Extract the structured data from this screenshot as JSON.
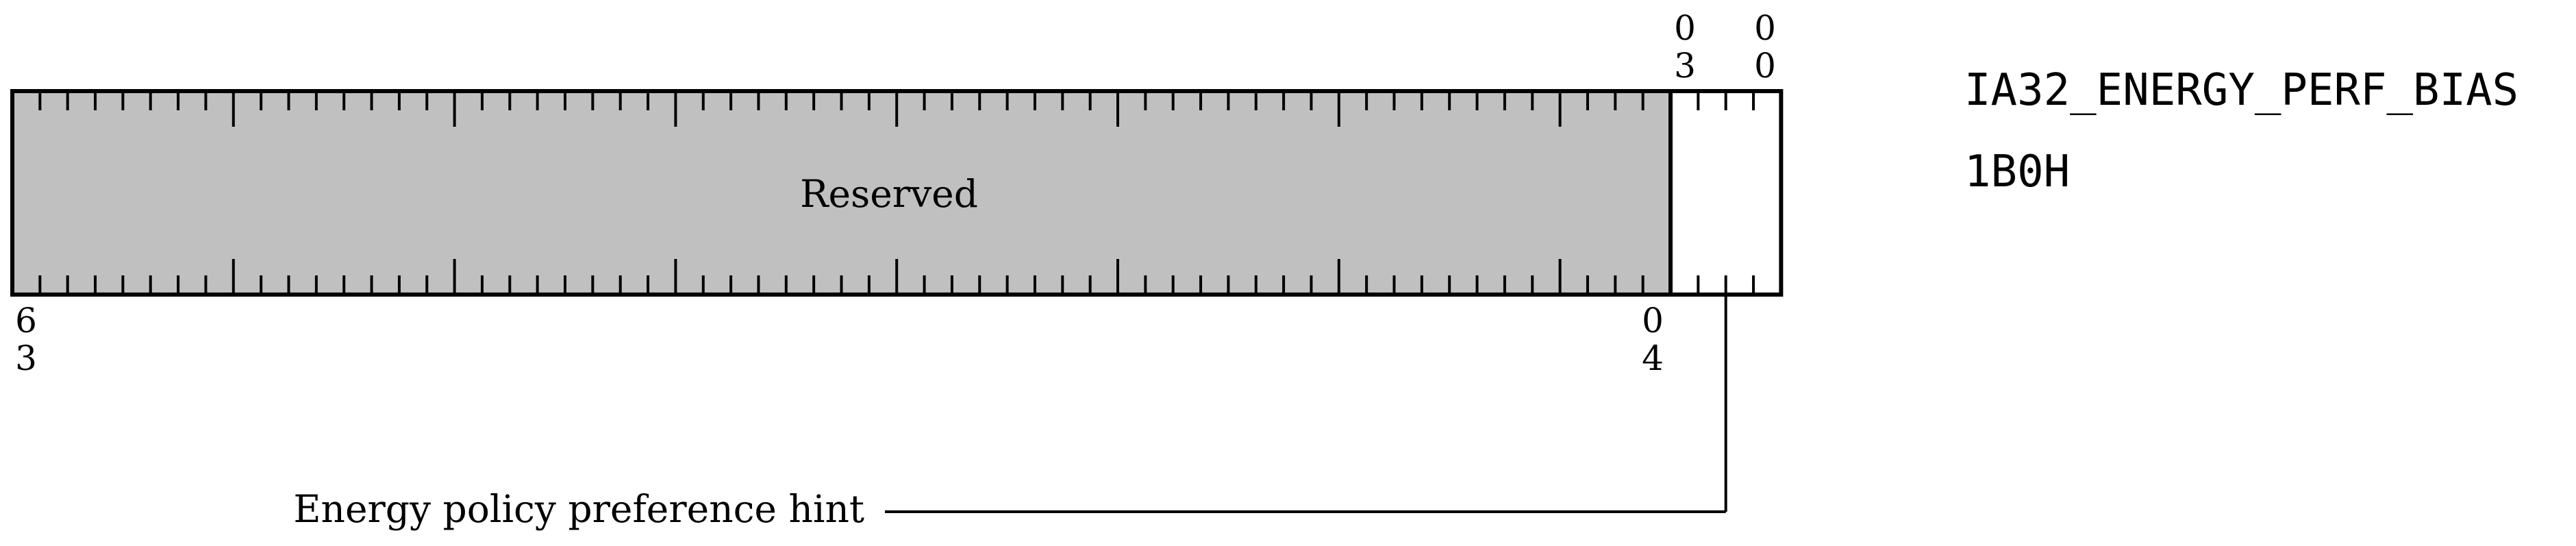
{
  "register": {
    "name": "IA32_ENERGY_PERF_BIAS",
    "address": "1B0H",
    "width_bits": 64
  },
  "fields": [
    {
      "id": "reserved",
      "label": "Reserved",
      "msb": 63,
      "lsb": 4,
      "msb_label": [
        "6",
        "3"
      ],
      "lsb_label": [
        "0",
        "4"
      ],
      "fill": "#c0c0c0",
      "label_position": "inside"
    },
    {
      "id": "energy-policy-hint",
      "label": "Energy policy preference hint",
      "msb": 3,
      "lsb": 0,
      "msb_label": [
        "0",
        "3"
      ],
      "lsb_label": [
        "0",
        "0"
      ],
      "fill": "#ffffff",
      "label_position": "callout-below"
    }
  ],
  "colors": {
    "stroke": "#000000",
    "reserved_fill": "#c0c0c0",
    "background": "#ffffff"
  }
}
